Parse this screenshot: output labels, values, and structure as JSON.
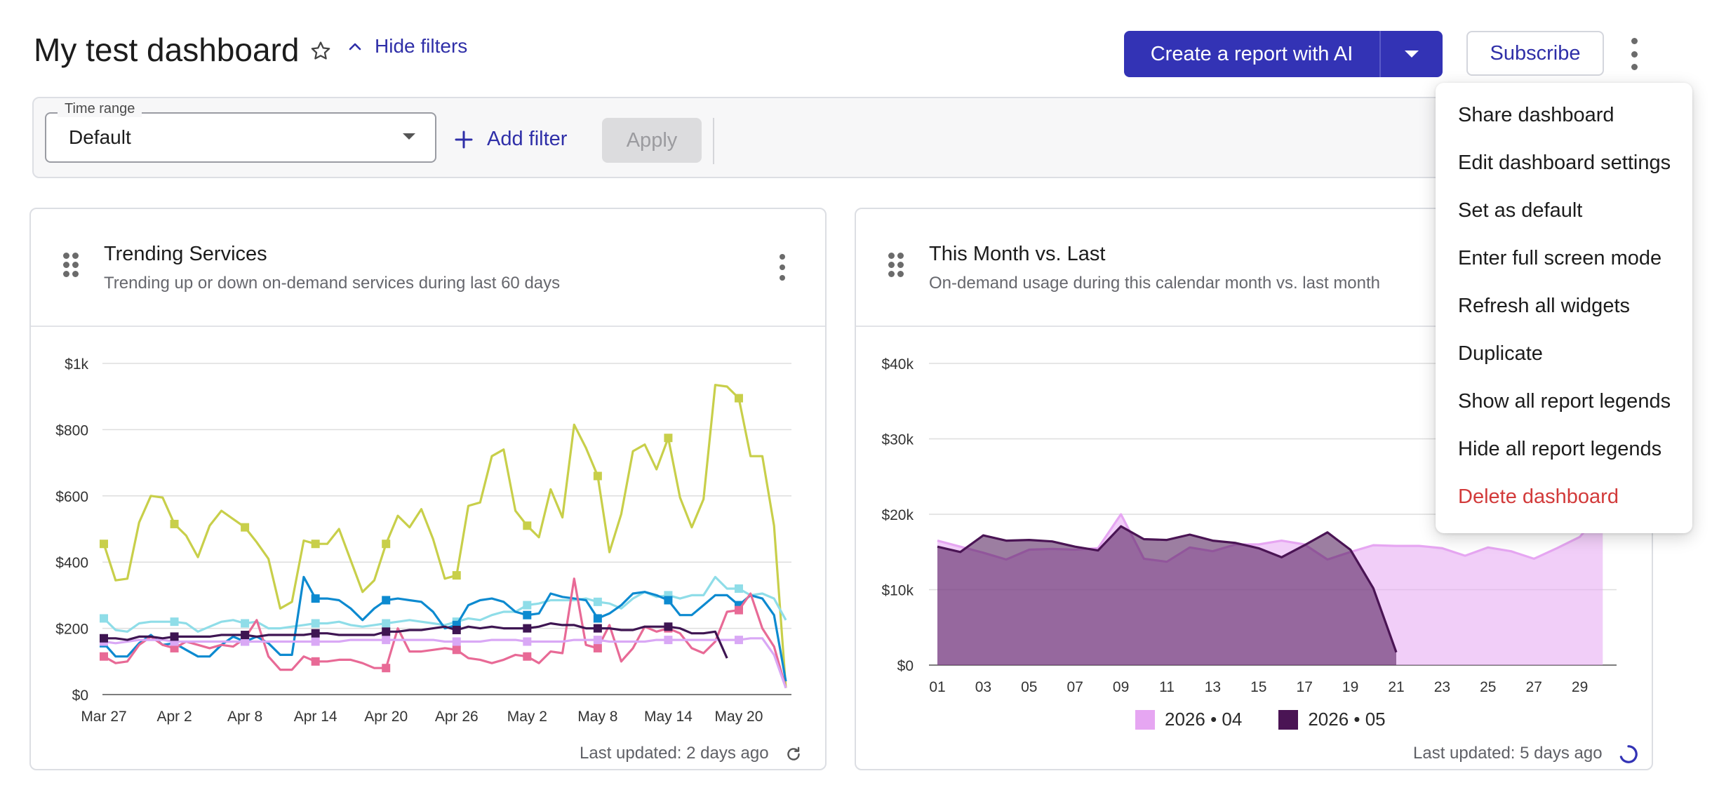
{
  "header": {
    "title": "My test dashboard",
    "hide_filters_label": "Hide filters",
    "create_report_label": "Create a report with AI",
    "subscribe_label": "Subscribe"
  },
  "filters": {
    "time_range_label": "Time range",
    "time_range_value": "Default",
    "add_filter_label": "Add filter",
    "apply_label": "Apply"
  },
  "colors": {
    "accent": "#3333b5",
    "danger": "#d23a3a"
  },
  "menu": {
    "items": [
      {
        "label": "Share dashboard"
      },
      {
        "label": "Edit dashboard settings"
      },
      {
        "label": "Set as default"
      },
      {
        "label": "Enter full screen mode"
      },
      {
        "label": "Refresh all widgets"
      },
      {
        "label": "Duplicate"
      },
      {
        "label": "Show all report legends"
      },
      {
        "label": "Hide all report legends"
      },
      {
        "label": "Delete dashboard",
        "style": "danger"
      }
    ]
  },
  "widgets": [
    {
      "title": "Trending Services",
      "subtitle": "Trending up or down on-demand services during last 60 days",
      "last_updated": "Last updated: 2 days ago",
      "icon": "refresh-icon"
    },
    {
      "title": "This Month vs. Last",
      "subtitle": "On-demand usage during this calendar month vs. last month",
      "last_updated": "Last updated: 5 days ago",
      "icon": "loading-spinner-icon"
    }
  ],
  "chart_data": [
    {
      "type": "line",
      "title": "Trending Services",
      "x_tick_labels": [
        "Mar 27",
        "Apr 2",
        "Apr 8",
        "Apr 14",
        "Apr 20",
        "Apr 26",
        "May 2",
        "May 8",
        "May 14",
        "May 20"
      ],
      "y_tick_labels": [
        "$0",
        "$200",
        "$400",
        "$600",
        "$800",
        "$1k"
      ],
      "ylim": [
        0,
        1000
      ],
      "grid": true,
      "series": [
        {
          "color": "#c8cf4a",
          "values": [
            455,
            345,
            350,
            520,
            600,
            595,
            515,
            480,
            415,
            510,
            555,
            530,
            505,
            460,
            410,
            260,
            280,
            465,
            455,
            455,
            500,
            405,
            310,
            345,
            455,
            540,
            505,
            560,
            470,
            350,
            360,
            570,
            580,
            720,
            740,
            555,
            510,
            475,
            620,
            535,
            815,
            745,
            660,
            430,
            545,
            735,
            755,
            680,
            775,
            595,
            505,
            590,
            935,
            930,
            895,
            720,
            720,
            510,
            20
          ]
        },
        {
          "color": "#8fdde8",
          "values": [
            230,
            195,
            190,
            215,
            220,
            220,
            220,
            215,
            190,
            205,
            220,
            225,
            215,
            220,
            200,
            200,
            205,
            210,
            215,
            215,
            220,
            210,
            205,
            210,
            215,
            220,
            225,
            220,
            215,
            210,
            220,
            230,
            225,
            240,
            250,
            250,
            270,
            275,
            285,
            285,
            285,
            290,
            280,
            275,
            260,
            290,
            310,
            295,
            300,
            290,
            300,
            300,
            355,
            320,
            320,
            300,
            305,
            290,
            225
          ]
        },
        {
          "color": "#0d8ad0",
          "values": [
            155,
            115,
            115,
            155,
            180,
            150,
            155,
            135,
            115,
            115,
            150,
            175,
            160,
            175,
            155,
            120,
            120,
            355,
            290,
            290,
            285,
            260,
            225,
            260,
            285,
            290,
            285,
            280,
            250,
            200,
            210,
            270,
            285,
            290,
            280,
            250,
            240,
            245,
            305,
            295,
            290,
            285,
            230,
            245,
            270,
            305,
            310,
            300,
            285,
            240,
            240,
            270,
            300,
            300,
            270,
            300,
            290,
            240,
            40
          ]
        },
        {
          "color": "#e86a96",
          "values": [
            115,
            95,
            100,
            150,
            175,
            150,
            140,
            160,
            150,
            140,
            150,
            145,
            170,
            225,
            115,
            75,
            75,
            115,
            100,
            100,
            105,
            105,
            95,
            80,
            80,
            200,
            130,
            130,
            135,
            140,
            135,
            110,
            105,
            95,
            105,
            120,
            115,
            95,
            130,
            125,
            350,
            150,
            140,
            210,
            100,
            140,
            205,
            190,
            200,
            185,
            140,
            125,
            160,
            250,
            255,
            305,
            200,
            145,
            20
          ]
        },
        {
          "color": "#d9a8f5",
          "values": [
            160,
            155,
            160,
            165,
            165,
            165,
            160,
            160,
            160,
            160,
            160,
            160,
            160,
            160,
            160,
            160,
            160,
            160,
            160,
            160,
            160,
            165,
            165,
            165,
            165,
            165,
            165,
            165,
            165,
            160,
            160,
            160,
            160,
            165,
            165,
            165,
            160,
            160,
            160,
            160,
            165,
            165,
            165,
            160,
            160,
            160,
            160,
            165,
            165,
            165,
            165,
            165,
            165,
            165,
            165,
            170,
            170,
            120,
            20
          ]
        },
        {
          "color": "#3e1552",
          "values": [
            170,
            170,
            165,
            175,
            175,
            170,
            175,
            175,
            175,
            175,
            180,
            180,
            180,
            175,
            180,
            180,
            180,
            180,
            185,
            185,
            180,
            180,
            180,
            180,
            190,
            190,
            195,
            195,
            200,
            205,
            195,
            205,
            200,
            205,
            200,
            200,
            200,
            205,
            215,
            210,
            210,
            200,
            200,
            200,
            195,
            195,
            205,
            205,
            205,
            200,
            185,
            185,
            190,
            110,
            null,
            null,
            null,
            null,
            null
          ]
        }
      ]
    },
    {
      "type": "area",
      "title": "This Month vs. Last",
      "x_tick_labels": [
        "01",
        "03",
        "05",
        "07",
        "09",
        "11",
        "13",
        "15",
        "17",
        "19",
        "21",
        "23",
        "25",
        "27",
        "29"
      ],
      "y_tick_labels": [
        "$0",
        "$10k",
        "$20k",
        "$30k",
        "$40k"
      ],
      "ylim": [
        0,
        40000
      ],
      "grid": true,
      "series": [
        {
          "name": "2026 • 04",
          "color": "#e6a6f2",
          "values": [
            16500,
            15700,
            14900,
            14000,
            15300,
            15400,
            15300,
            15500,
            20000,
            14100,
            13700,
            15600,
            15100,
            16000,
            16000,
            16500,
            16000,
            14000,
            15000,
            15900,
            15800,
            15800,
            15500,
            14500,
            15600,
            15100,
            14100,
            15500,
            17000,
            20500
          ]
        },
        {
          "name": "2026 • 05",
          "color": "#4a1454",
          "values": [
            15700,
            15000,
            17200,
            16500,
            16600,
            16400,
            15700,
            15200,
            18400,
            16700,
            16600,
            17300,
            16500,
            16200,
            15500,
            14300,
            15900,
            17600,
            15300,
            10200,
            1700
          ]
        }
      ]
    }
  ]
}
